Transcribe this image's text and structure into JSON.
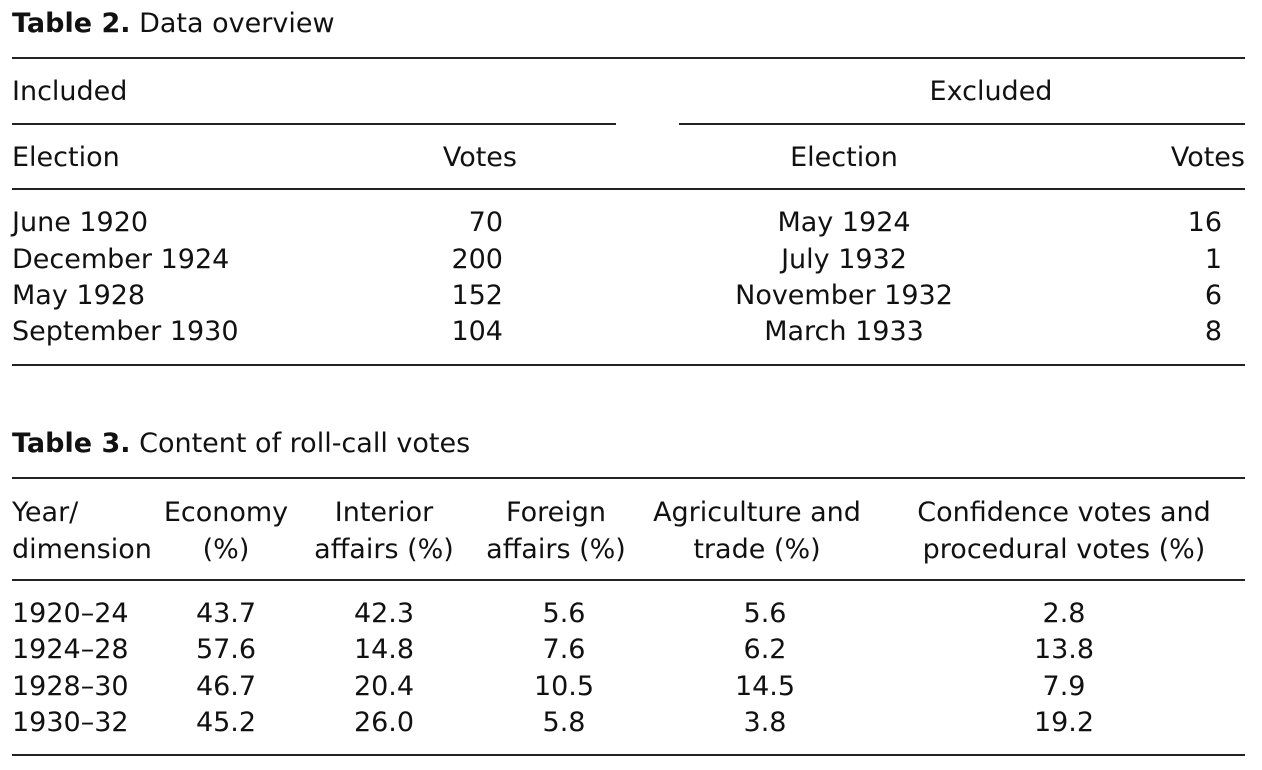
{
  "table2": {
    "caption_label": "Table 2.",
    "caption_text": "Data overview",
    "included_label": "Included",
    "excluded_label": "Excluded",
    "col_election": "Election",
    "col_votes": "Votes",
    "included_rows": [
      {
        "election": "June 1920",
        "votes": "70"
      },
      {
        "election": "December 1924",
        "votes": "200"
      },
      {
        "election": "May 1928",
        "votes": "152"
      },
      {
        "election": "September 1930",
        "votes": "104"
      }
    ],
    "excluded_rows": [
      {
        "election": "May 1924",
        "votes": "16"
      },
      {
        "election": "July 1932",
        "votes": "1"
      },
      {
        "election": "November 1932",
        "votes": "6"
      },
      {
        "election": "March 1933",
        "votes": "8"
      }
    ]
  },
  "table3": {
    "caption_label": "Table 3.",
    "caption_text": "Content of roll-call votes",
    "headers": [
      [
        "Year/",
        "dimension"
      ],
      [
        "Economy",
        "(%)"
      ],
      [
        "Interior",
        "affairs (%)"
      ],
      [
        "Foreign",
        "affairs (%)"
      ],
      [
        "Agriculture and",
        "trade (%)"
      ],
      [
        "Confidence votes and",
        "procedural votes (%)"
      ]
    ],
    "rows": [
      [
        "1920–24",
        "43.7",
        "42.3",
        "5.6",
        "5.6",
        "2.8"
      ],
      [
        "1924–28",
        "57.6",
        "14.8",
        "7.6",
        "6.2",
        "13.8"
      ],
      [
        "1928–30",
        "46.7",
        "20.4",
        "10.5",
        "14.5",
        "7.9"
      ],
      [
        "1930–32",
        "45.2",
        "26.0",
        "5.8",
        "3.8",
        "19.2"
      ]
    ]
  }
}
